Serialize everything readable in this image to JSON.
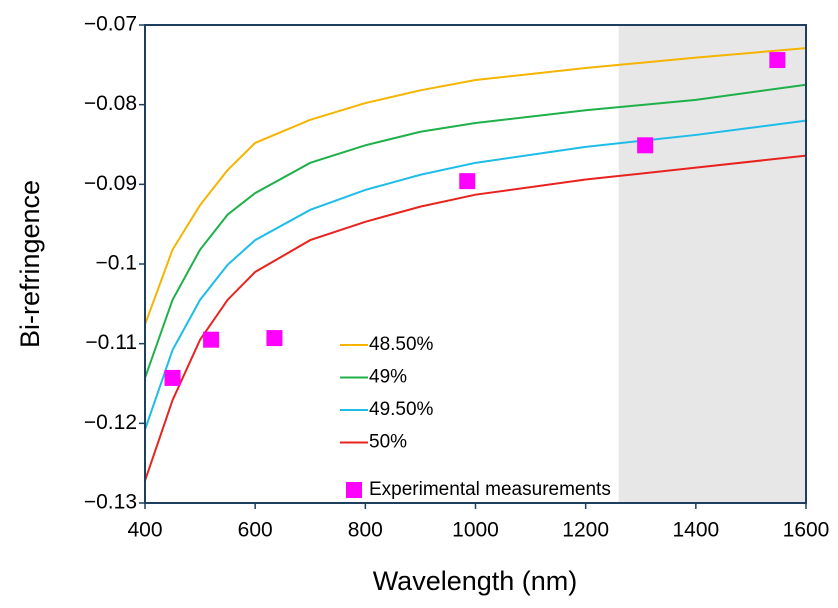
{
  "chart_data": {
    "type": "line",
    "x_label": "Wavelength (nm)",
    "y_label": "Bi-refringence",
    "x": [
      400,
      450,
      500,
      550,
      600,
      700,
      800,
      900,
      1000,
      1200,
      1400,
      1600
    ],
    "series": [
      {
        "name": "48.50%",
        "color": "#f5b400",
        "values": [
          -0.1076,
          -0.0982,
          -0.0926,
          -0.0882,
          -0.0848,
          -0.0819,
          -0.0798,
          -0.0782,
          -0.0769,
          -0.0754,
          -0.0741,
          -0.0729
        ]
      },
      {
        "name": "49%",
        "color": "#1fb04a",
        "values": [
          -0.1143,
          -0.1045,
          -0.0982,
          -0.0938,
          -0.0911,
          -0.0873,
          -0.0851,
          -0.0834,
          -0.0823,
          -0.0807,
          -0.0794,
          -0.0775
        ]
      },
      {
        "name": "49.50%",
        "color": "#1ebde8",
        "values": [
          -0.1208,
          -0.1108,
          -0.1045,
          -0.1001,
          -0.097,
          -0.0932,
          -0.0907,
          -0.0888,
          -0.0873,
          -0.0853,
          -0.0838,
          -0.082
        ]
      },
      {
        "name": "50%",
        "color": "#e8231e",
        "values": [
          -0.1272,
          -0.1171,
          -0.1095,
          -0.1045,
          -0.101,
          -0.097,
          -0.0947,
          -0.0928,
          -0.0913,
          -0.0894,
          -0.0879,
          -0.0864
        ]
      },
      {
        "name": "Experimental measurements",
        "type": "scatter",
        "marker": "square",
        "color": "#ff00ff",
        "x": [
          450,
          520,
          635,
          985,
          1308,
          1548
        ],
        "values": [
          -0.1143,
          -0.1095,
          -0.1093,
          -0.0896,
          -0.0851,
          -0.0744
        ]
      }
    ],
    "shaded_xrange": [
      1260,
      1600
    ],
    "shade_color": "#e7e7e7",
    "xlim": [
      400,
      1600
    ],
    "xticks": [
      400,
      600,
      800,
      1000,
      1200,
      1400,
      1600
    ],
    "ylim": [
      -0.13,
      -0.07
    ],
    "yticks": [
      {
        "value": -0.13,
        "label": "−0.13"
      },
      {
        "value": -0.12,
        "label": "−0.12"
      },
      {
        "value": -0.11,
        "label": "−0.11"
      },
      {
        "value": -0.1,
        "label": "−0.1"
      },
      {
        "value": -0.09,
        "label": "−0.09"
      },
      {
        "value": -0.08,
        "label": "−0.08"
      },
      {
        "value": -0.07,
        "label": "−0.07"
      }
    ],
    "grid": false
  }
}
